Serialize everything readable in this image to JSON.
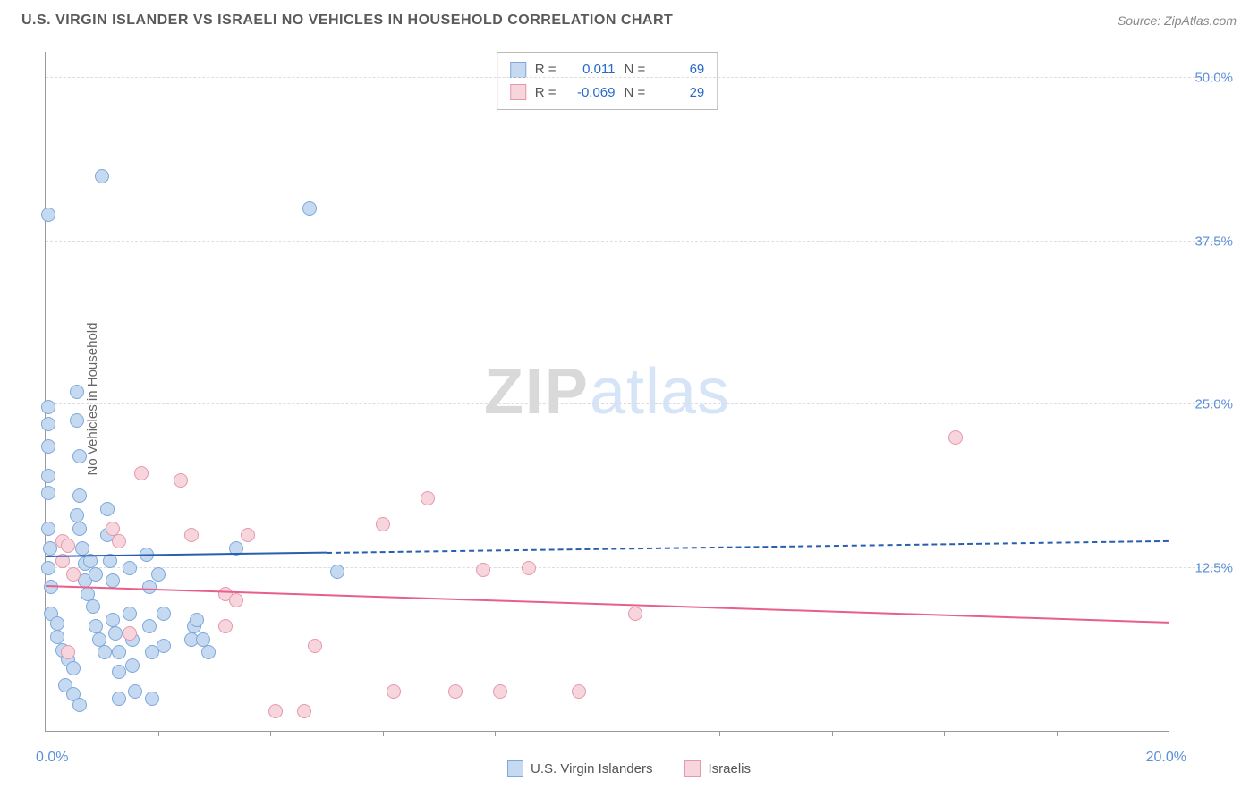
{
  "header": {
    "title": "U.S. VIRGIN ISLANDER VS ISRAELI NO VEHICLES IN HOUSEHOLD CORRELATION CHART",
    "source": "Source: ZipAtlas.com"
  },
  "watermark": {
    "part1": "ZIP",
    "part2": "atlas"
  },
  "chart": {
    "type": "scatter",
    "ylabel": "No Vehicles in Household",
    "xlim": [
      0,
      20
    ],
    "ylim": [
      0,
      52
    ],
    "x_unit": "%",
    "y_unit": "%",
    "x_tick_labels": {
      "min": "0.0%",
      "max": "20.0%"
    },
    "x_tick_marks": [
      2,
      4,
      6,
      8,
      10,
      12,
      14,
      16,
      18
    ],
    "y_gridlines": [
      12.5,
      25.0,
      37.5,
      50.0
    ],
    "y_tick_labels": [
      "12.5%",
      "25.0%",
      "37.5%",
      "50.0%"
    ],
    "grid_color": "#dddddd",
    "axis_color": "#999999",
    "tick_label_color": "#5a8fd8",
    "background_color": "#ffffff",
    "point_radius": 8,
    "series": [
      {
        "name": "U.S. Virgin Islanders",
        "fill": "#c5d9f1",
        "stroke": "#7da8db",
        "R": "0.011",
        "N": "69",
        "trend": {
          "y_at_xmin": 13.4,
          "y_at_xmax": 14.6,
          "solid_until_x": 5.0,
          "color": "#2a5fb0",
          "width": 2
        },
        "points": [
          [
            0.05,
            39.5
          ],
          [
            0.05,
            24.8
          ],
          [
            0.05,
            23.5
          ],
          [
            0.05,
            21.8
          ],
          [
            0.05,
            19.5
          ],
          [
            0.05,
            18.2
          ],
          [
            0.05,
            15.5
          ],
          [
            0.08,
            14.0
          ],
          [
            0.05,
            12.5
          ],
          [
            0.1,
            11.0
          ],
          [
            0.1,
            9.0
          ],
          [
            0.2,
            8.2
          ],
          [
            0.2,
            7.2
          ],
          [
            0.3,
            6.2
          ],
          [
            0.4,
            5.5
          ],
          [
            0.5,
            4.8
          ],
          [
            0.35,
            3.5
          ],
          [
            0.5,
            2.8
          ],
          [
            0.6,
            2.0
          ],
          [
            0.55,
            26.0
          ],
          [
            0.55,
            23.8
          ],
          [
            0.6,
            21.0
          ],
          [
            0.6,
            18.0
          ],
          [
            0.55,
            16.5
          ],
          [
            0.6,
            15.5
          ],
          [
            0.65,
            14.0
          ],
          [
            0.7,
            12.8
          ],
          [
            0.7,
            11.5
          ],
          [
            0.75,
            10.5
          ],
          [
            0.8,
            13.0
          ],
          [
            0.9,
            12.0
          ],
          [
            0.85,
            9.5
          ],
          [
            0.9,
            8.0
          ],
          [
            0.95,
            7.0
          ],
          [
            1.05,
            6.0
          ],
          [
            1.0,
            42.5
          ],
          [
            1.1,
            17.0
          ],
          [
            1.1,
            15.0
          ],
          [
            1.15,
            13.0
          ],
          [
            1.2,
            11.5
          ],
          [
            1.2,
            8.5
          ],
          [
            1.25,
            7.5
          ],
          [
            1.3,
            6.0
          ],
          [
            1.3,
            4.5
          ],
          [
            1.3,
            2.5
          ],
          [
            1.5,
            12.5
          ],
          [
            1.5,
            9.0
          ],
          [
            1.55,
            7.0
          ],
          [
            1.55,
            5.0
          ],
          [
            1.6,
            3.0
          ],
          [
            1.8,
            13.5
          ],
          [
            1.85,
            11.0
          ],
          [
            1.85,
            8.0
          ],
          [
            1.9,
            6.0
          ],
          [
            1.9,
            2.5
          ],
          [
            2.0,
            12.0
          ],
          [
            2.1,
            9.0
          ],
          [
            2.1,
            6.5
          ],
          [
            2.6,
            7.0
          ],
          [
            2.65,
            8.0
          ],
          [
            2.7,
            8.5
          ],
          [
            2.8,
            7.0
          ],
          [
            2.9,
            6.0
          ],
          [
            3.4,
            14.0
          ],
          [
            4.7,
            40.0
          ],
          [
            5.2,
            12.2
          ]
        ]
      },
      {
        "name": "Israelis",
        "fill": "#f6d5dd",
        "stroke": "#e797ae",
        "R": "-0.069",
        "N": "29",
        "trend": {
          "y_at_xmin": 11.2,
          "y_at_xmax": 8.4,
          "solid_until_x": 20.0,
          "color": "#e85f88",
          "width": 2
        },
        "points": [
          [
            0.3,
            14.5
          ],
          [
            0.3,
            13.0
          ],
          [
            0.4,
            14.2
          ],
          [
            0.4,
            6.0
          ],
          [
            0.5,
            12.0
          ],
          [
            1.2,
            15.5
          ],
          [
            1.3,
            14.5
          ],
          [
            1.5,
            7.5
          ],
          [
            1.7,
            19.7
          ],
          [
            2.4,
            19.2
          ],
          [
            2.6,
            15.0
          ],
          [
            3.2,
            10.5
          ],
          [
            3.2,
            8.0
          ],
          [
            3.4,
            10.0
          ],
          [
            3.6,
            15.0
          ],
          [
            4.1,
            1.5
          ],
          [
            4.6,
            1.5
          ],
          [
            4.8,
            6.5
          ],
          [
            6.0,
            15.8
          ],
          [
            6.2,
            3.0
          ],
          [
            6.8,
            17.8
          ],
          [
            7.3,
            3.0
          ],
          [
            7.8,
            12.3
          ],
          [
            8.1,
            3.0
          ],
          [
            8.6,
            12.5
          ],
          [
            9.5,
            3.0
          ],
          [
            10.5,
            9.0
          ],
          [
            16.2,
            22.5
          ]
        ]
      }
    ]
  },
  "legend": {
    "series1_label": "U.S. Virgin Islanders",
    "series2_label": "Israelis"
  },
  "corr_legend": {
    "r_label": "R =",
    "n_label": "N ="
  }
}
